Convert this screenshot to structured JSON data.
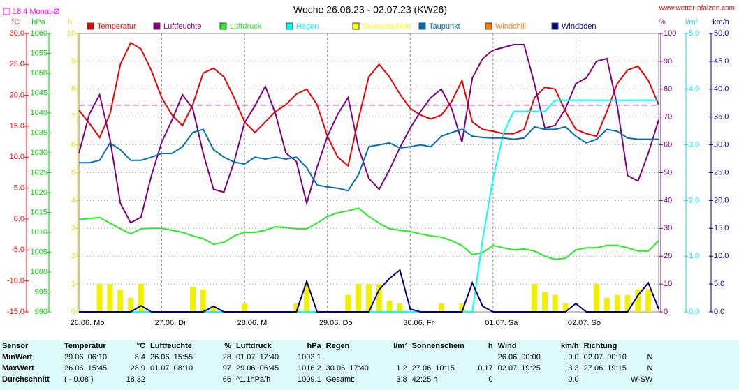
{
  "chart_data": {
    "type": "line",
    "title": "Woche 26.06.23 - 02.07.23 (KW26)",
    "source": "www.wetter-pfalzen.com",
    "avg_line": {
      "label": "18.4 Monat-Ø",
      "value": 18.4,
      "color": "#ff00ff",
      "axis": 0
    },
    "grid": true,
    "categories": [
      "26.06. Mo",
      null,
      null,
      null,
      null,
      null,
      null,
      null,
      "27.06. Di",
      null,
      null,
      null,
      null,
      null,
      null,
      null,
      "28.06. Mi",
      null,
      null,
      null,
      null,
      null,
      null,
      null,
      "29.06. Do",
      null,
      null,
      null,
      null,
      null,
      null,
      null,
      "30.06. Fr",
      null,
      null,
      null,
      null,
      null,
      null,
      null,
      "01.07. Sa",
      null,
      null,
      null,
      null,
      null,
      null,
      null,
      "02.07. So",
      null,
      null,
      null,
      null,
      null,
      null,
      null,
      null
    ],
    "axes": [
      {
        "label": "°C",
        "color": "#ff0000",
        "lim": [
          -15,
          30
        ],
        "ticks": [
          {
            "value": -15,
            "label": "-15.0"
          },
          {
            "value": -10,
            "label": "-10.0"
          },
          {
            "value": -5,
            "label": "-5.0"
          },
          {
            "value": 0,
            "label": "0.0"
          },
          {
            "value": 5,
            "label": "5.0"
          },
          {
            "value": 10,
            "label": "10.0"
          },
          {
            "value": 15,
            "label": "15.0"
          },
          {
            "value": 20,
            "label": "20.0"
          },
          {
            "value": 25,
            "label": "25.0"
          },
          {
            "value": 30,
            "label": "30.0"
          }
        ]
      },
      {
        "label": "hPa",
        "color": "#00d000",
        "lim": [
          990,
          1060
        ],
        "ticks": [
          990,
          995,
          1000,
          1005,
          1010,
          1015,
          1020,
          1025,
          1030,
          1035,
          1040,
          1045,
          1050,
          1055,
          1060
        ]
      },
      {
        "label": "h",
        "color": "#e0e000",
        "lim": [
          0,
          10
        ],
        "ticks": [
          0,
          1,
          2,
          3,
          4,
          5,
          6,
          7,
          8,
          9,
          10
        ]
      },
      {
        "label": "%",
        "color": "#800080",
        "lim": [
          0,
          100
        ],
        "ticks": [
          0,
          10,
          20,
          30,
          40,
          50,
          60,
          70,
          80,
          90,
          100
        ]
      },
      {
        "label": "l/m²",
        "color": "#00e0e0",
        "lim": [
          0,
          5
        ],
        "ticks": [
          {
            "value": 0,
            "label": "0.0"
          },
          {
            "value": 1,
            "label": "1.0"
          },
          {
            "value": 2,
            "label": "2.0"
          },
          {
            "value": 3,
            "label": "3.0"
          },
          {
            "value": 4,
            "label": "4.0"
          },
          {
            "value": 5,
            "label": "5.0"
          }
        ]
      },
      {
        "label": "km/h",
        "color": "#000080",
        "lim": [
          0,
          50
        ],
        "ticks": [
          {
            "value": 0,
            "label": "0.0"
          },
          {
            "value": 5,
            "label": "5.0"
          },
          {
            "value": 10,
            "label": "10.0"
          },
          {
            "value": 15,
            "label": "15.0"
          },
          {
            "value": 20,
            "label": "20.0"
          },
          {
            "value": 25,
            "label": "25.0"
          },
          {
            "value": 30,
            "label": "30.0"
          },
          {
            "value": 35,
            "label": "35.0"
          },
          {
            "value": 40,
            "label": "40.0"
          },
          {
            "value": 45,
            "label": "45.0"
          },
          {
            "value": 50,
            "label": "50.0"
          }
        ]
      }
    ],
    "series": [
      {
        "name": "Temperatur",
        "color": "#ee0000",
        "axis": 0,
        "type": "line",
        "values": [
          17.6,
          15.5,
          13.2,
          17,
          25,
          28.5,
          27.5,
          24,
          19.6,
          16.8,
          15.1,
          18.5,
          23.6,
          24.4,
          23,
          19.6,
          15.7,
          14,
          15.7,
          17.4,
          18.5,
          20.2,
          21,
          18.5,
          13.4,
          10,
          8.6,
          16.2,
          23,
          25,
          23,
          20.2,
          17.9,
          16.8,
          16.2,
          16.8,
          19,
          22.4,
          15.7,
          14.5,
          14.2,
          13.8,
          13.8,
          14.5,
          19.6,
          21.3,
          21,
          17.4,
          14.5,
          13.8,
          13.4,
          17.4,
          21.9,
          24.1,
          24.7,
          22.4,
          18.5
        ]
      },
      {
        "name": "Luftfeuchte",
        "color": "#800080",
        "axis": 3,
        "type": "line",
        "values": [
          57,
          71,
          78,
          62,
          39,
          32,
          34,
          49,
          61,
          69,
          78,
          73,
          57,
          44,
          43,
          54,
          68,
          74,
          81,
          71,
          57,
          54,
          39,
          52,
          63,
          71,
          77,
          59,
          48,
          44,
          51,
          59,
          66,
          72,
          77,
          80,
          73,
          61,
          84,
          91,
          94,
          95,
          96,
          96,
          82,
          66,
          67,
          73,
          82,
          84,
          90,
          91,
          74,
          49,
          47,
          57,
          69
        ]
      },
      {
        "name": "Luftdruck",
        "color": "#22ee22",
        "axis": 1,
        "type": "line",
        "values": [
          1013.2,
          1013.5,
          1013.7,
          1012.3,
          1010.9,
          1009.6,
          1010.9,
          1011,
          1011,
          1010.5,
          1010,
          1009.1,
          1008.4,
          1007,
          1007.5,
          1009.1,
          1010,
          1010,
          1010.5,
          1011.4,
          1011.2,
          1010.9,
          1010.9,
          1012.3,
          1014,
          1014.9,
          1015.4,
          1016.1,
          1014,
          1012.3,
          1010.9,
          1010.5,
          1010.2,
          1009.6,
          1009.1,
          1008.8,
          1007.9,
          1006.7,
          1004.4,
          1004.9,
          1006.7,
          1006.1,
          1005.6,
          1005.8,
          1005.3,
          1004,
          1003.2,
          1003.5,
          1005.6,
          1006.1,
          1006.1,
          1006.7,
          1006.7,
          1006.1,
          1005.3,
          1005.3,
          1007.9
        ]
      },
      {
        "name": "Regen",
        "color": "#00ffff",
        "axis": 4,
        "type": "line",
        "values": [
          0,
          0,
          0,
          0,
          0,
          0,
          0,
          0,
          0,
          0,
          0,
          0,
          0,
          0,
          0,
          0,
          0,
          0,
          0,
          0,
          0,
          0,
          0,
          0,
          0,
          0,
          0,
          0,
          0,
          0,
          0,
          0,
          0,
          0,
          0,
          0,
          0,
          0,
          0,
          1.3,
          2.4,
          3.2,
          3.6,
          3.6,
          3.6,
          3.6,
          3.8,
          3.8,
          3.8,
          3.8,
          3.8,
          3.8,
          3.8,
          3.8,
          3.8,
          3.8,
          3.8
        ]
      },
      {
        "name": "Sonnenschein",
        "color": "#ffff00",
        "axis": 2,
        "type": "bar",
        "values": [
          0,
          0,
          1,
          1,
          0.8,
          0.5,
          1,
          0,
          0,
          0,
          0,
          0.9,
          0.8,
          0.2,
          0,
          0,
          0.3,
          0,
          0,
          0,
          0,
          0.3,
          1,
          0,
          0,
          0,
          0.6,
          1,
          1,
          1,
          0.4,
          0.3,
          0,
          0,
          0,
          0.3,
          0,
          0.3,
          0,
          0,
          0,
          0,
          0,
          0,
          1,
          0.7,
          0.6,
          0.3,
          0,
          0,
          1,
          0.5,
          0.6,
          0.6,
          0.8,
          0.8,
          0
        ]
      },
      {
        "name": "Taupunkt",
        "color": "#0070b0",
        "axis": 0,
        "type": "line",
        "values": [
          9.1,
          9.1,
          9.5,
          12.3,
          11.2,
          9.5,
          9.5,
          10,
          10.6,
          10.6,
          11.7,
          14,
          14.5,
          11.2,
          10,
          9.2,
          8.9,
          10,
          9.7,
          10,
          9.7,
          10,
          8.3,
          5.5,
          5.2,
          5,
          4.6,
          7.2,
          11.7,
          12,
          12.3,
          11.5,
          11.7,
          12,
          11.7,
          13.4,
          14,
          14.5,
          13.4,
          13.2,
          13.1,
          13.1,
          12.9,
          13.1,
          14.9,
          14.5,
          14.5,
          14.9,
          13.4,
          12.3,
          12.9,
          14.5,
          14.2,
          13.1,
          12.9,
          12.9,
          12.9
        ]
      },
      {
        "name": "Windchill",
        "color": "#ff8000",
        "axis": 0,
        "type": "line",
        "values": [
          null,
          null,
          null,
          null,
          null,
          null,
          null,
          null,
          null,
          null,
          null,
          null,
          null,
          null,
          null,
          null,
          null,
          null,
          null,
          null,
          null,
          null,
          null,
          null,
          null,
          null,
          null,
          null,
          null,
          null,
          null,
          null,
          null,
          null,
          null,
          null,
          null,
          null,
          null,
          null,
          null,
          null,
          null,
          null,
          null,
          null,
          null,
          null,
          null,
          null,
          null,
          null,
          null,
          null,
          null,
          null,
          null
        ]
      },
      {
        "name": "Windböen",
        "color": "#000080",
        "axis": 5,
        "type": "line",
        "values": [
          0,
          0,
          0,
          0,
          0,
          0,
          1.1,
          0,
          0,
          0,
          0,
          0,
          0,
          1,
          0,
          0,
          0,
          0,
          0,
          0,
          0,
          0,
          5.5,
          0,
          0,
          0,
          0,
          0,
          0,
          4,
          6,
          7.5,
          0.5,
          0,
          0,
          0,
          0,
          0,
          5.2,
          1,
          0,
          0,
          0,
          0,
          0,
          0,
          0,
          0,
          1.5,
          0,
          0,
          0,
          0,
          0,
          3,
          5.2,
          0.5
        ]
      }
    ]
  },
  "table": {
    "header": [
      "Sensor",
      "Temperatur",
      "°C",
      "Luftfeuchte",
      "%",
      "Luftdruck",
      "hPa",
      "Regen",
      "l/m²",
      "Sonnenschein",
      "h",
      "Wind",
      "km/h",
      "Richtung"
    ],
    "rows": [
      [
        "MinWert",
        "29.06.  06:10",
        "8.4",
        "26.06.  15:55",
        "28",
        "01.07.  17:40",
        "1003.1",
        null,
        null,
        null,
        null,
        "26.06.  00:00",
        "0.0",
        "02.07.  00:10",
        "N"
      ],
      [
        "MaxWert",
        "26.06.  15:45",
        "28.9",
        "01.07.  08:10",
        "97",
        "29.06.  06:45",
        "1016.2",
        "30.06.  17:40",
        "1.2",
        "27.06.  10:15",
        "0.17",
        "02.07.  19:25",
        "3.3",
        "27.06.  19:15",
        "N"
      ],
      [
        "Durchschnitt",
        "( - 0.08 )",
        "18.32",
        null,
        "66",
        "^1.1hPa/h",
        "1009.1",
        "Gesamt:",
        "3.8",
        "42:25 h",
        "0",
        null,
        "0.0",
        null,
        "W-SW"
      ]
    ]
  }
}
